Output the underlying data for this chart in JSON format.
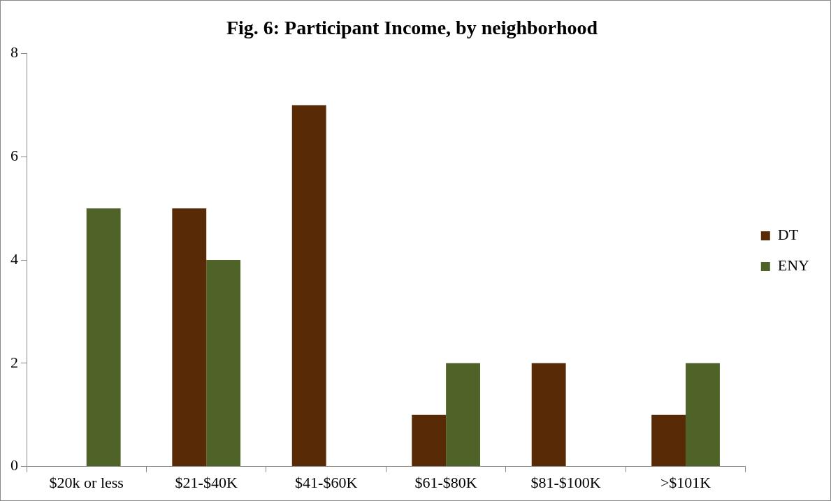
{
  "chart_data": {
    "type": "bar",
    "title": "Fig. 6: Participant Income, by neighborhood",
    "categories": [
      "$20k or less",
      "$21-$40K",
      "$41-$60K",
      "$61-$80K",
      "$81-$100K",
      ">$101K"
    ],
    "series": [
      {
        "name": "DT",
        "color": "#582a06",
        "values": [
          0,
          5,
          7,
          1,
          2,
          1
        ]
      },
      {
        "name": "ENY",
        "color": "#4f6228",
        "values": [
          5,
          4,
          0,
          2,
          0,
          2
        ]
      }
    ],
    "ylim": [
      0,
      8
    ],
    "yticks": [
      0,
      2,
      4,
      6,
      8
    ],
    "grid": false,
    "legend": "right"
  }
}
